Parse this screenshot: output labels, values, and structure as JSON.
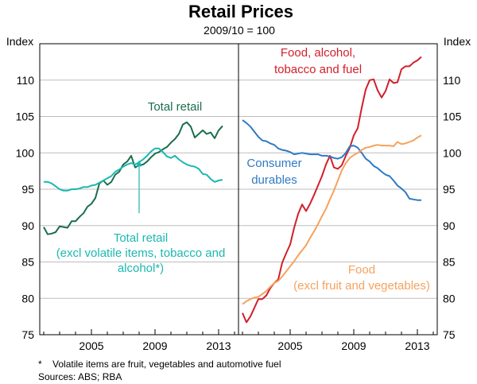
{
  "chart_data": {
    "type": "line",
    "title": "Retail Prices",
    "subtitle": "2009/10 = 100",
    "ylabel": "Index",
    "ylim": [
      75,
      115
    ],
    "yticks": [
      75,
      80,
      85,
      90,
      95,
      100,
      105,
      110
    ],
    "xticks": [
      2005,
      2009,
      2013
    ],
    "footnote": "*    Volatile items are fruit, vegetables and automotive fuel",
    "sources": "Sources: ABS; RBA",
    "panels": [
      {
        "name": "left",
        "xlim": [
          2001.75,
          2014.25
        ],
        "series": [
          {
            "name": "Total retail",
            "label": "Total retail",
            "color": "#1a6e4c",
            "x": [
              2002.0,
              2002.25,
              2002.5,
              2002.75,
              2003.0,
              2003.25,
              2003.5,
              2003.75,
              2004.0,
              2004.25,
              2004.5,
              2004.75,
              2005.0,
              2005.25,
              2005.5,
              2005.75,
              2006.0,
              2006.25,
              2006.5,
              2006.75,
              2007.0,
              2007.25,
              2007.5,
              2007.75,
              2008.0,
              2008.25,
              2008.5,
              2008.75,
              2009.0,
              2009.25,
              2009.5,
              2009.75,
              2010.0,
              2010.25,
              2010.5,
              2010.75,
              2011.0,
              2011.25,
              2011.5,
              2011.75,
              2012.0,
              2012.25,
              2012.5,
              2012.75,
              2013.0,
              2013.25
            ],
            "values": [
              89.8,
              88.8,
              88.9,
              89.1,
              89.9,
              89.8,
              89.7,
              90.6,
              90.6,
              91.2,
              91.7,
              92.6,
              93.0,
              93.8,
              95.8,
              96.2,
              95.6,
              96.0,
              97.0,
              97.4,
              98.4,
              98.8,
              99.6,
              98.0,
              98.3,
              98.4,
              98.8,
              99.4,
              99.9,
              100.1,
              100.5,
              100.8,
              101.4,
              101.9,
              102.6,
              103.9,
              104.2,
              103.6,
              102.1,
              102.6,
              103.1,
              102.6,
              102.8,
              102.0,
              103.1,
              103.7
            ]
          },
          {
            "name": "Total retail (excl volatile items, tobacco and alcohol)",
            "label": "Total retail (excl volatile items, tobacco and alcohol*)",
            "color": "#1bb8b0",
            "x": [
              2002.0,
              2002.25,
              2002.5,
              2002.75,
              2003.0,
              2003.25,
              2003.5,
              2003.75,
              2004.0,
              2004.25,
              2004.5,
              2004.75,
              2005.0,
              2005.25,
              2005.5,
              2005.75,
              2006.0,
              2006.25,
              2006.5,
              2006.75,
              2007.0,
              2007.25,
              2007.5,
              2007.75,
              2008.0,
              2008.25,
              2008.5,
              2008.75,
              2009.0,
              2009.25,
              2009.5,
              2009.75,
              2010.0,
              2010.25,
              2010.5,
              2010.75,
              2011.0,
              2011.25,
              2011.5,
              2011.75,
              2012.0,
              2012.25,
              2012.5,
              2012.75,
              2013.0,
              2013.25
            ],
            "values": [
              96.0,
              96.0,
              95.8,
              95.4,
              95.0,
              94.8,
              94.8,
              95.0,
              95.0,
              95.1,
              95.3,
              95.3,
              95.5,
              95.6,
              95.9,
              96.2,
              96.5,
              96.8,
              97.4,
              97.7,
              98.1,
              98.4,
              98.6,
              98.4,
              98.7,
              99.1,
              99.6,
              100.2,
              100.6,
              100.6,
              100.1,
              99.5,
              99.3,
              99.6,
              99.1,
              98.7,
              98.4,
              98.2,
              98.1,
              97.8,
              97.1,
              97.0,
              96.4,
              96.0,
              96.2,
              96.3
            ]
          }
        ]
      },
      {
        "name": "right",
        "xlim": [
          2001.75,
          2014.25
        ],
        "series": [
          {
            "name": "Food, alcohol, tobacco and fuel",
            "label": "Food, alcohol, tobacco and fuel",
            "color": "#d21f2a",
            "x": [
              2002.0,
              2002.25,
              2002.5,
              2002.75,
              2003.0,
              2003.25,
              2003.5,
              2003.75,
              2004.0,
              2004.25,
              2004.5,
              2004.75,
              2005.0,
              2005.25,
              2005.5,
              2005.75,
              2006.0,
              2006.25,
              2006.5,
              2006.75,
              2007.0,
              2007.25,
              2007.5,
              2007.75,
              2008.0,
              2008.25,
              2008.5,
              2008.75,
              2009.0,
              2009.25,
              2009.5,
              2009.75,
              2010.0,
              2010.25,
              2010.5,
              2010.75,
              2011.0,
              2011.25,
              2011.5,
              2011.75,
              2012.0,
              2012.25,
              2012.5,
              2012.75,
              2013.0,
              2013.25
            ],
            "values": [
              78.0,
              76.7,
              77.5,
              78.7,
              79.9,
              79.9,
              80.4,
              81.4,
              82.1,
              82.6,
              84.9,
              86.2,
              87.4,
              89.7,
              91.6,
              92.9,
              92.0,
              93.0,
              94.2,
              95.5,
              96.8,
              98.4,
              99.6,
              98.0,
              97.8,
              98.3,
              99.6,
              100.7,
              102.4,
              103.4,
              106.2,
              108.7,
              110.0,
              110.1,
              108.6,
              107.6,
              108.5,
              110.1,
              109.6,
              109.7,
              111.5,
              111.9,
              111.9,
              112.4,
              112.7,
              113.2
            ]
          },
          {
            "name": "Consumer durables",
            "label": "Consumer durables",
            "color": "#2e7ac4",
            "x": [
              2002.0,
              2002.25,
              2002.5,
              2002.75,
              2003.0,
              2003.25,
              2003.5,
              2003.75,
              2004.0,
              2004.25,
              2004.5,
              2004.75,
              2005.0,
              2005.25,
              2005.5,
              2005.75,
              2006.0,
              2006.25,
              2006.5,
              2006.75,
              2007.0,
              2007.25,
              2007.5,
              2007.75,
              2008.0,
              2008.25,
              2008.5,
              2008.75,
              2009.0,
              2009.25,
              2009.5,
              2009.75,
              2010.0,
              2010.25,
              2010.5,
              2010.75,
              2011.0,
              2011.25,
              2011.5,
              2011.75,
              2012.0,
              2012.25,
              2012.5,
              2012.75,
              2013.0,
              2013.25
            ],
            "values": [
              104.5,
              104.1,
              103.6,
              102.9,
              102.2,
              101.7,
              101.6,
              101.3,
              101.1,
              100.6,
              100.4,
              100.3,
              100.1,
              99.8,
              99.9,
              100.0,
              99.9,
              99.8,
              99.8,
              99.8,
              99.6,
              99.6,
              99.5,
              99.3,
              99.2,
              99.4,
              100.0,
              100.9,
              101.0,
              100.7,
              100.0,
              99.2,
              98.8,
              98.2,
              97.9,
              97.4,
              97.0,
              96.8,
              96.2,
              95.5,
              95.1,
              94.6,
              93.7,
              93.6,
              93.5,
              93.5
            ]
          },
          {
            "name": "Food (excl fruit and vegetables)",
            "label": "Food (excl fruit and vegetables)",
            "color": "#f5a25d",
            "x": [
              2002.0,
              2002.25,
              2002.5,
              2002.75,
              2003.0,
              2003.25,
              2003.5,
              2003.75,
              2004.0,
              2004.25,
              2004.5,
              2004.75,
              2005.0,
              2005.25,
              2005.5,
              2005.75,
              2006.0,
              2006.25,
              2006.5,
              2006.75,
              2007.0,
              2007.25,
              2007.5,
              2007.75,
              2008.0,
              2008.25,
              2008.5,
              2008.75,
              2009.0,
              2009.25,
              2009.5,
              2009.75,
              2010.0,
              2010.25,
              2010.5,
              2010.75,
              2011.0,
              2011.25,
              2011.5,
              2011.75,
              2012.0,
              2012.25,
              2012.5,
              2012.75,
              2013.0,
              2013.25
            ],
            "values": [
              79.2,
              79.6,
              79.9,
              80.1,
              80.2,
              80.6,
              81.0,
              81.6,
              82.1,
              82.4,
              83.0,
              83.7,
              84.4,
              85.1,
              85.9,
              86.6,
              87.3,
              88.3,
              89.2,
              90.2,
              91.3,
              92.3,
              93.6,
              94.8,
              96.2,
              97.6,
              98.6,
              99.3,
              99.7,
              100.0,
              100.4,
              100.7,
              100.8,
              101.0,
              101.1,
              101.0,
              101.0,
              101.0,
              100.9,
              101.5,
              101.2,
              101.3,
              101.5,
              101.7,
              102.1,
              102.4
            ]
          }
        ]
      }
    ],
    "annotation_arrow": {
      "x": 2008.0,
      "from": 91.7,
      "to": 99.0,
      "panel": "left"
    }
  }
}
